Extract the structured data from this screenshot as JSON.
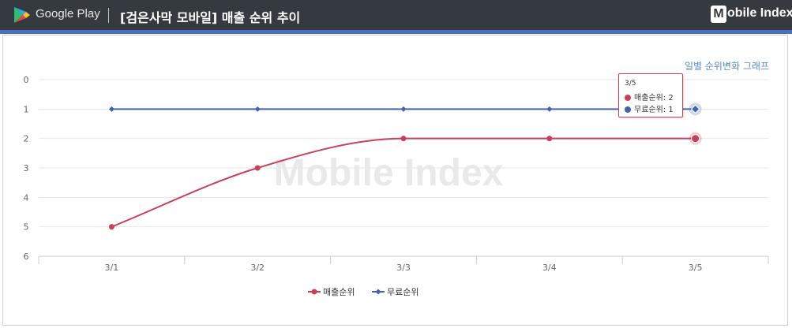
{
  "header": {
    "store_name": "Google Play",
    "title": "[검은사막 모바일] 매출 순위 추이",
    "brand_badge": "M",
    "brand_text": "obile Index",
    "store_icon": "google-play-icon",
    "colors": {
      "header_bg": "#343a40",
      "accent": "#4a6fc6"
    }
  },
  "graph_link": "일별 순위변화 그래프",
  "watermark": "Mobile Index",
  "tooltip": {
    "title": "3/5",
    "rows": [
      {
        "label": "매출순위: ",
        "value": "2"
      },
      {
        "label": "무료순위: ",
        "value": "1"
      }
    ]
  },
  "chart_data": {
    "type": "line",
    "categories": [
      "3/1",
      "3/2",
      "3/3",
      "3/4",
      "3/5"
    ],
    "y_ticks": [
      "0",
      "1",
      "2",
      "3",
      "4",
      "5",
      "6"
    ],
    "ylim": [
      0,
      6
    ],
    "y_reversed": true,
    "grid": true,
    "legend_position": "bottom",
    "series": [
      {
        "name": "매출순위",
        "values": [
          5,
          3,
          2,
          2,
          2
        ],
        "color": "#c94058",
        "marker": "circle",
        "smooth": true
      },
      {
        "name": "무료순위",
        "values": [
          1,
          1,
          1,
          1,
          1
        ],
        "color": "#4063b3",
        "marker": "diamond",
        "smooth": false
      }
    ],
    "highlighted_category": "3/5"
  }
}
